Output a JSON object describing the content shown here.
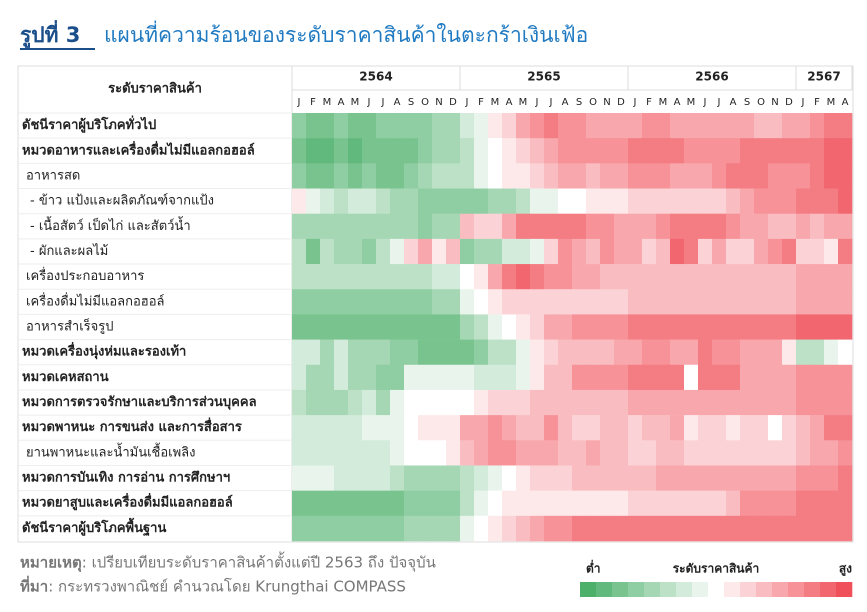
{
  "chart_data": {
    "type": "heatmap",
    "title_prefix": "รูปที่ 3",
    "title": "แผนที่ความร้อนของระดับราคาสินค้าในตะกร้าเงินเฟ้อ",
    "row_header": "ระดับราคาสินค้า",
    "x_groups": [
      {
        "label": "2564",
        "months": [
          "J",
          "F",
          "M",
          "A",
          "M",
          "J",
          "J",
          "A",
          "S",
          "O",
          "N",
          "D"
        ]
      },
      {
        "label": "2565",
        "months": [
          "J",
          "F",
          "M",
          "A",
          "M",
          "J",
          "J",
          "A",
          "S",
          "O",
          "N",
          "D"
        ]
      },
      {
        "label": "2566",
        "months": [
          "J",
          "F",
          "M",
          "A",
          "M",
          "J",
          "J",
          "A",
          "S",
          "O",
          "N",
          "D"
        ]
      },
      {
        "label": "2567",
        "months": [
          "J",
          "F",
          "M",
          "A"
        ]
      }
    ],
    "rows": [
      {
        "label": "ดัชนีราคาผู้บริโภคทั่วไป",
        "bold": true
      },
      {
        "label": "หมวดอาหารและเครื่องดื่มไม่มีแอลกอฮอล์",
        "bold": true
      },
      {
        "label": "อาหารสด",
        "bold": false
      },
      {
        "label": "- ข้าว แป้งและผลิตภัณฑ์จากแป้ง",
        "bold": false
      },
      {
        "label": "- เนื้อสัตว์ เป็ดไก่ และสัตว์น้ำ",
        "bold": false
      },
      {
        "label": "- ผักและผลไม้",
        "bold": false
      },
      {
        "label": "เครื่องประกอบอาหาร",
        "bold": false
      },
      {
        "label": "เครื่องดื่มไม่มีแอลกอฮอล์",
        "bold": false
      },
      {
        "label": "อาหารสำเร็จรูป",
        "bold": false
      },
      {
        "label": "หมวดเครื่องนุ่งห่มและรองเท้า",
        "bold": true
      },
      {
        "label": "หมวดเคหสถาน",
        "bold": true
      },
      {
        "label": "หมวดการตรวจรักษาและบริการส่วนบุคคล",
        "bold": true
      },
      {
        "label": "หมวดพาหนะ การขนส่ง และการสื่อสาร",
        "bold": true
      },
      {
        "label": "ยานพาหนะและน้ำมันเชื้อเพลิง",
        "bold": false
      },
      {
        "label": "หมวดการบันเทิง การอ่าน การศึกษาฯ",
        "bold": true
      },
      {
        "label": "หมวดยาสูบและเครื่องดื่มมีแอลกอฮอล์",
        "bold": true
      },
      {
        "label": "ดัชนีราคาผู้บริโภคพื้นฐาน",
        "bold": true
      }
    ],
    "zlim": [
      0,
      16
    ],
    "colors": {
      "low": "#4caf6a",
      "mid": "#ffffff",
      "high": "#f0505a"
    },
    "values": [
      [
        3,
        2,
        2,
        3,
        2,
        2,
        3,
        3,
        3,
        3,
        4,
        4,
        6,
        7,
        9,
        10,
        12,
        13,
        14,
        13,
        13,
        12,
        12,
        12,
        12,
        13,
        13,
        12,
        12,
        12,
        12,
        12,
        12,
        11,
        11,
        12,
        12,
        13,
        14,
        14
      ],
      [
        2,
        1,
        1,
        2,
        1,
        2,
        2,
        2,
        2,
        3,
        4,
        4,
        5,
        7,
        8,
        9,
        10,
        11,
        12,
        13,
        13,
        13,
        13,
        13,
        14,
        14,
        14,
        14,
        13,
        13,
        13,
        13,
        14,
        14,
        14,
        14,
        14,
        14,
        15,
        15
      ],
      [
        3,
        2,
        2,
        3,
        2,
        3,
        2,
        2,
        3,
        4,
        5,
        5,
        5,
        7,
        8,
        9,
        9,
        10,
        11,
        12,
        12,
        11,
        12,
        12,
        13,
        13,
        13,
        12,
        12,
        12,
        13,
        14,
        14,
        14,
        13,
        13,
        13,
        14,
        15,
        15
      ],
      [
        9,
        7,
        6,
        5,
        6,
        6,
        5,
        4,
        4,
        3,
        3,
        3,
        3,
        3,
        4,
        4,
        5,
        7,
        7,
        8,
        8,
        9,
        9,
        9,
        10,
        10,
        10,
        10,
        10,
        10,
        10,
        11,
        12,
        13,
        13,
        13,
        14,
        14,
        14,
        15
      ],
      [
        4,
        4,
        4,
        4,
        4,
        4,
        4,
        4,
        4,
        3,
        4,
        4,
        11,
        10,
        10,
        12,
        14,
        14,
        14,
        14,
        14,
        13,
        13,
        12,
        12,
        12,
        13,
        14,
        14,
        14,
        14,
        13,
        12,
        12,
        11,
        11,
        12,
        11,
        12,
        12
      ],
      [
        5,
        2,
        5,
        4,
        4,
        3,
        5,
        7,
        10,
        12,
        9,
        11,
        3,
        4,
        4,
        6,
        6,
        7,
        10,
        13,
        12,
        11,
        13,
        12,
        12,
        10,
        11,
        15,
        14,
        10,
        12,
        10,
        10,
        12,
        13,
        14,
        10,
        10,
        9,
        14
      ],
      [
        5,
        5,
        5,
        5,
        5,
        5,
        5,
        5,
        5,
        5,
        6,
        6,
        8,
        9,
        12,
        14,
        15,
        14,
        13,
        13,
        12,
        12,
        11,
        11,
        11,
        11,
        11,
        11,
        11,
        11,
        11,
        11,
        11,
        11,
        11,
        11,
        12,
        12,
        12,
        12
      ],
      [
        3,
        3,
        3,
        3,
        3,
        3,
        3,
        3,
        3,
        3,
        4,
        4,
        7,
        8,
        9,
        10,
        10,
        10,
        10,
        10,
        10,
        10,
        10,
        10,
        11,
        11,
        11,
        11,
        11,
        11,
        11,
        11,
        11,
        11,
        11,
        11,
        12,
        12,
        12,
        12
      ],
      [
        2,
        2,
        2,
        2,
        2,
        2,
        2,
        2,
        2,
        2,
        2,
        2,
        4,
        5,
        7,
        8,
        9,
        10,
        12,
        12,
        13,
        13,
        13,
        13,
        14,
        14,
        14,
        14,
        14,
        14,
        14,
        14,
        14,
        14,
        14,
        14,
        15,
        15,
        15,
        15
      ],
      [
        6,
        6,
        4,
        6,
        4,
        4,
        4,
        3,
        3,
        2,
        2,
        2,
        2,
        3,
        5,
        5,
        7,
        9,
        10,
        11,
        11,
        11,
        11,
        12,
        12,
        13,
        13,
        12,
        12,
        14,
        13,
        13,
        12,
        12,
        12,
        9,
        5,
        5,
        7,
        8
      ],
      [
        6,
        4,
        4,
        6,
        4,
        4,
        3,
        3,
        7,
        7,
        7,
        7,
        7,
        6,
        6,
        6,
        7,
        9,
        11,
        11,
        13,
        13,
        13,
        13,
        14,
        14,
        14,
        14,
        8,
        14,
        14,
        14,
        12,
        12,
        12,
        12,
        13,
        13,
        13,
        13
      ],
      [
        5,
        4,
        4,
        4,
        5,
        6,
        4,
        7,
        8,
        8,
        8,
        8,
        8,
        9,
        10,
        10,
        10,
        11,
        11,
        11,
        11,
        11,
        11,
        11,
        12,
        12,
        12,
        12,
        12,
        12,
        12,
        12,
        12,
        12,
        12,
        12,
        13,
        13,
        13,
        13
      ],
      [
        6,
        6,
        6,
        6,
        6,
        7,
        7,
        7,
        8,
        9,
        9,
        9,
        12,
        12,
        13,
        12,
        11,
        11,
        13,
        11,
        10,
        10,
        11,
        11,
        10,
        11,
        11,
        12,
        9,
        10,
        10,
        9,
        10,
        10,
        8,
        10,
        11,
        12,
        14,
        14
      ],
      [
        6,
        6,
        6,
        6,
        6,
        6,
        6,
        7,
        8,
        8,
        8,
        9,
        11,
        12,
        13,
        13,
        12,
        12,
        12,
        11,
        11,
        12,
        11,
        11,
        10,
        10,
        11,
        11,
        10,
        10,
        10,
        10,
        10,
        10,
        10,
        10,
        11,
        12,
        12,
        13
      ],
      [
        7,
        7,
        7,
        6,
        6,
        6,
        6,
        5,
        4,
        4,
        4,
        4,
        5,
        6,
        7,
        8,
        9,
        10,
        10,
        10,
        11,
        11,
        11,
        11,
        11,
        11,
        12,
        12,
        12,
        12,
        12,
        12,
        12,
        12,
        12,
        12,
        13,
        13,
        13,
        14
      ],
      [
        2,
        2,
        2,
        2,
        2,
        2,
        2,
        2,
        3,
        3,
        3,
        3,
        5,
        7,
        8,
        9,
        9,
        9,
        9,
        9,
        9,
        9,
        9,
        9,
        10,
        10,
        10,
        10,
        10,
        10,
        10,
        11,
        13,
        13,
        13,
        13,
        14,
        14,
        14,
        14
      ],
      [
        3,
        3,
        3,
        3,
        3,
        3,
        3,
        3,
        4,
        4,
        4,
        4,
        7,
        8,
        9,
        10,
        11,
        12,
        13,
        13,
        14,
        14,
        14,
        14,
        14,
        14,
        14,
        14,
        14,
        14,
        14,
        14,
        14,
        14,
        14,
        14,
        14,
        14,
        14,
        14
      ]
    ],
    "legend": {
      "low": "ต่ำ",
      "title": "ระดับราคาสินค้า",
      "high": "สูง"
    },
    "note_label": "หมายเหตุ",
    "note": ": เปรียบเทียบระดับราคาสินค้าตั้งแต่ปี 2563 ถึง ปัจจุบัน",
    "source_label": "ที่มา",
    "source": ": กระทรวงพาณิชย์ คำนวณโดย Krungthai COMPASS"
  }
}
